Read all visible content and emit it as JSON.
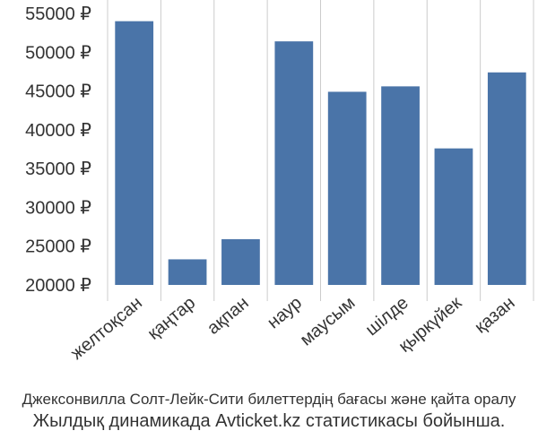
{
  "chart_data": {
    "type": "bar",
    "categories": [
      "желтоқсан",
      "қаңтар",
      "ақпан",
      "наур",
      "маусым",
      "шілде",
      "қыркүйек",
      "қазан"
    ],
    "values": [
      54000,
      23300,
      25900,
      51400,
      44900,
      45600,
      37600,
      47400
    ],
    "y_ticks": [
      20000,
      25000,
      30000,
      35000,
      40000,
      45000,
      50000,
      55000
    ],
    "y_tick_labels": [
      "20000 ₽",
      "25000 ₽",
      "30000 ₽",
      "35000 ₽",
      "40000 ₽",
      "45000 ₽",
      "50000 ₽",
      "55000 ₽"
    ],
    "ylim": [
      20000,
      55000
    ],
    "grid": "vertical",
    "bar_color": "#4a74a8",
    "grid_color": "#cccccc"
  },
  "caption": {
    "line1": "Джексонвилла Солт-Лейк-Сити билеттердің бағасы және қайта оралу",
    "line2": "Жылдық динамикада Avticket.kz статистикасы бойынша."
  }
}
